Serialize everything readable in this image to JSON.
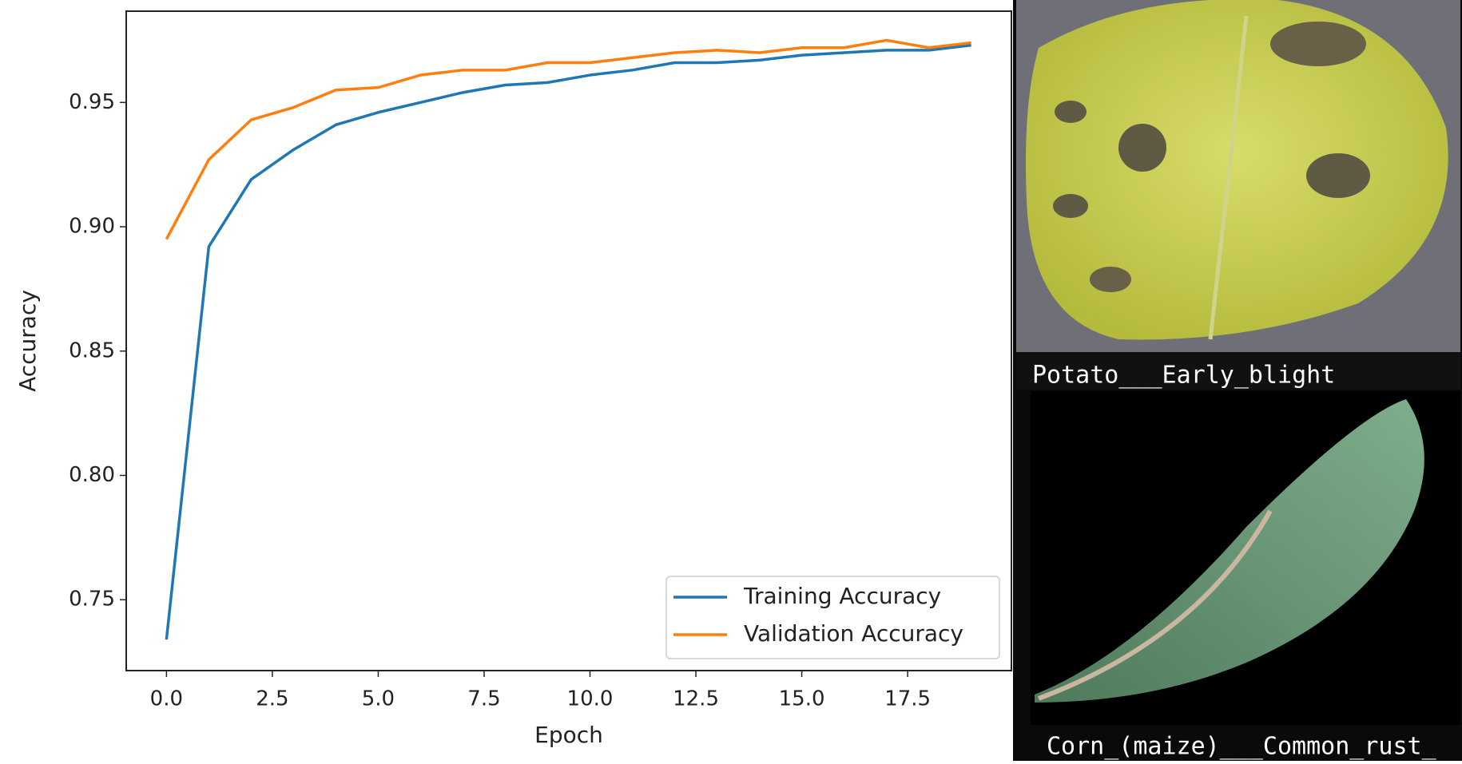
{
  "chart_data": {
    "type": "line",
    "x": [
      0,
      1,
      2,
      3,
      4,
      5,
      6,
      7,
      8,
      9,
      10,
      11,
      12,
      13,
      14,
      15,
      16,
      17,
      18,
      19
    ],
    "series": [
      {
        "name": "Training Accuracy",
        "color": "#1f77b4",
        "values": [
          0.734,
          0.892,
          0.919,
          0.931,
          0.941,
          0.946,
          0.95,
          0.954,
          0.957,
          0.958,
          0.961,
          0.963,
          0.966,
          0.966,
          0.967,
          0.969,
          0.97,
          0.971,
          0.971,
          0.973
        ]
      },
      {
        "name": "Validation Accuracy",
        "color": "#ff7f0e",
        "values": [
          0.895,
          0.927,
          0.943,
          0.948,
          0.955,
          0.956,
          0.961,
          0.963,
          0.963,
          0.966,
          0.966,
          0.968,
          0.97,
          0.971,
          0.97,
          0.972,
          0.972,
          0.975,
          0.972,
          0.974
        ]
      }
    ],
    "x_label": "Epoch",
    "y_label": "Accuracy",
    "xlim": [
      -0.95,
      19.95
    ],
    "xticks": [
      {
        "value": 0,
        "label": "0.0"
      },
      2.5,
      {
        "value": 5,
        "label": "5.0"
      },
      7.5,
      {
        "value": 10,
        "label": "10.0"
      },
      12.5,
      {
        "value": 15,
        "label": "15.0"
      },
      17.5
    ],
    "ylim": [
      0.7215,
      0.9867
    ],
    "yticks": [
      0.75,
      {
        "value": 0.8,
        "label": "0.80"
      },
      0.85,
      {
        "value": 0.9,
        "label": "0.90"
      },
      0.95
    ],
    "legend": "lower right",
    "grid": false
  },
  "images": [
    {
      "caption": "Potato___Early_blight"
    },
    {
      "caption": "Corn_(maize)___Common_rust_"
    }
  ]
}
